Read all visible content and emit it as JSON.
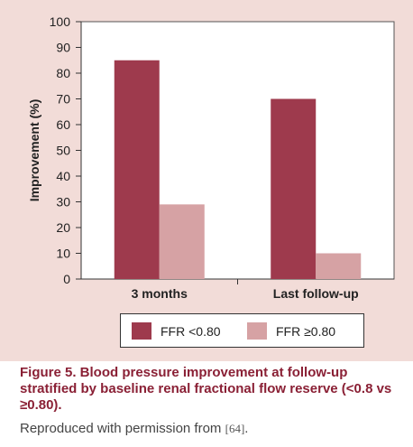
{
  "chart_data": {
    "type": "bar",
    "categories": [
      "3 months",
      "Last follow-up"
    ],
    "series": [
      {
        "name": "FFR <0.80",
        "color": "#9e3a4d",
        "values": [
          85,
          70
        ]
      },
      {
        "name": "FFR ≥0.80",
        "color": "#d6a2a4",
        "values": [
          29,
          10
        ]
      }
    ],
    "ylabel": "Improvement (%)",
    "xlabel": "",
    "ylim": [
      0,
      100
    ],
    "yticks": [
      0,
      10,
      20,
      30,
      40,
      50,
      60,
      70,
      80,
      90,
      100
    ],
    "grid": false,
    "legend_position": "bottom"
  },
  "caption": {
    "title": "Figure 5. Blood pressure improvement at follow-up stratified by baseline renal fractional flow reserve (<0.8 vs ≥0.80).",
    "credit_text": "Reproduced with permission from",
    "credit_ref": "[64]",
    "credit_end": "."
  }
}
